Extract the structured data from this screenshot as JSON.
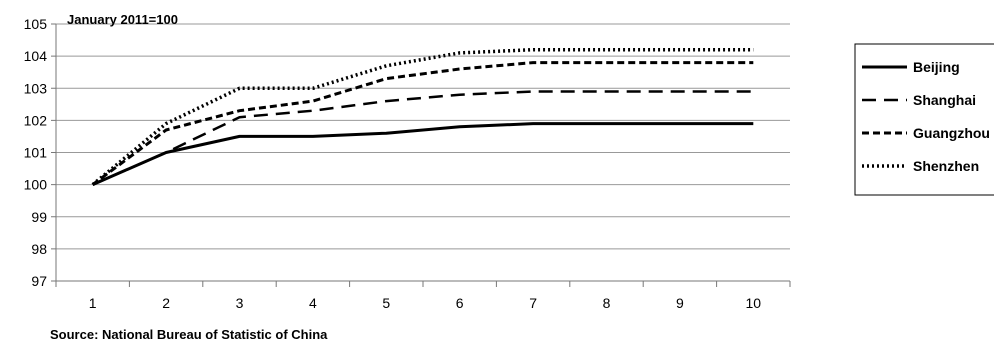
{
  "chart_data": {
    "type": "line",
    "annotation": "January 2011=100",
    "source": "Source: National Bureau of Statistic of China",
    "x": [
      1,
      2,
      3,
      4,
      5,
      6,
      7,
      8,
      9,
      10
    ],
    "ylim": [
      97,
      105
    ],
    "yticks": [
      97,
      98,
      99,
      100,
      101,
      102,
      103,
      104,
      105
    ],
    "grid": "horizontal",
    "legend_position": "right",
    "series": [
      {
        "name": "Beijing",
        "style": "solid",
        "values": [
          100,
          101.0,
          101.5,
          101.5,
          101.6,
          101.8,
          101.9,
          101.9,
          101.9,
          101.9
        ]
      },
      {
        "name": "Shanghai",
        "style": "long-dash",
        "values": [
          100,
          101.0,
          102.1,
          102.3,
          102.6,
          102.8,
          102.9,
          102.9,
          102.9,
          102.9
        ]
      },
      {
        "name": "Guangzhou",
        "style": "short-dash",
        "values": [
          100,
          101.7,
          102.3,
          102.6,
          103.3,
          103.6,
          103.8,
          103.8,
          103.8,
          103.8
        ]
      },
      {
        "name": "Shenzhen",
        "style": "dotted",
        "values": [
          100,
          101.9,
          103.0,
          103.0,
          103.7,
          104.1,
          104.2,
          104.2,
          104.2,
          104.2
        ]
      }
    ]
  }
}
